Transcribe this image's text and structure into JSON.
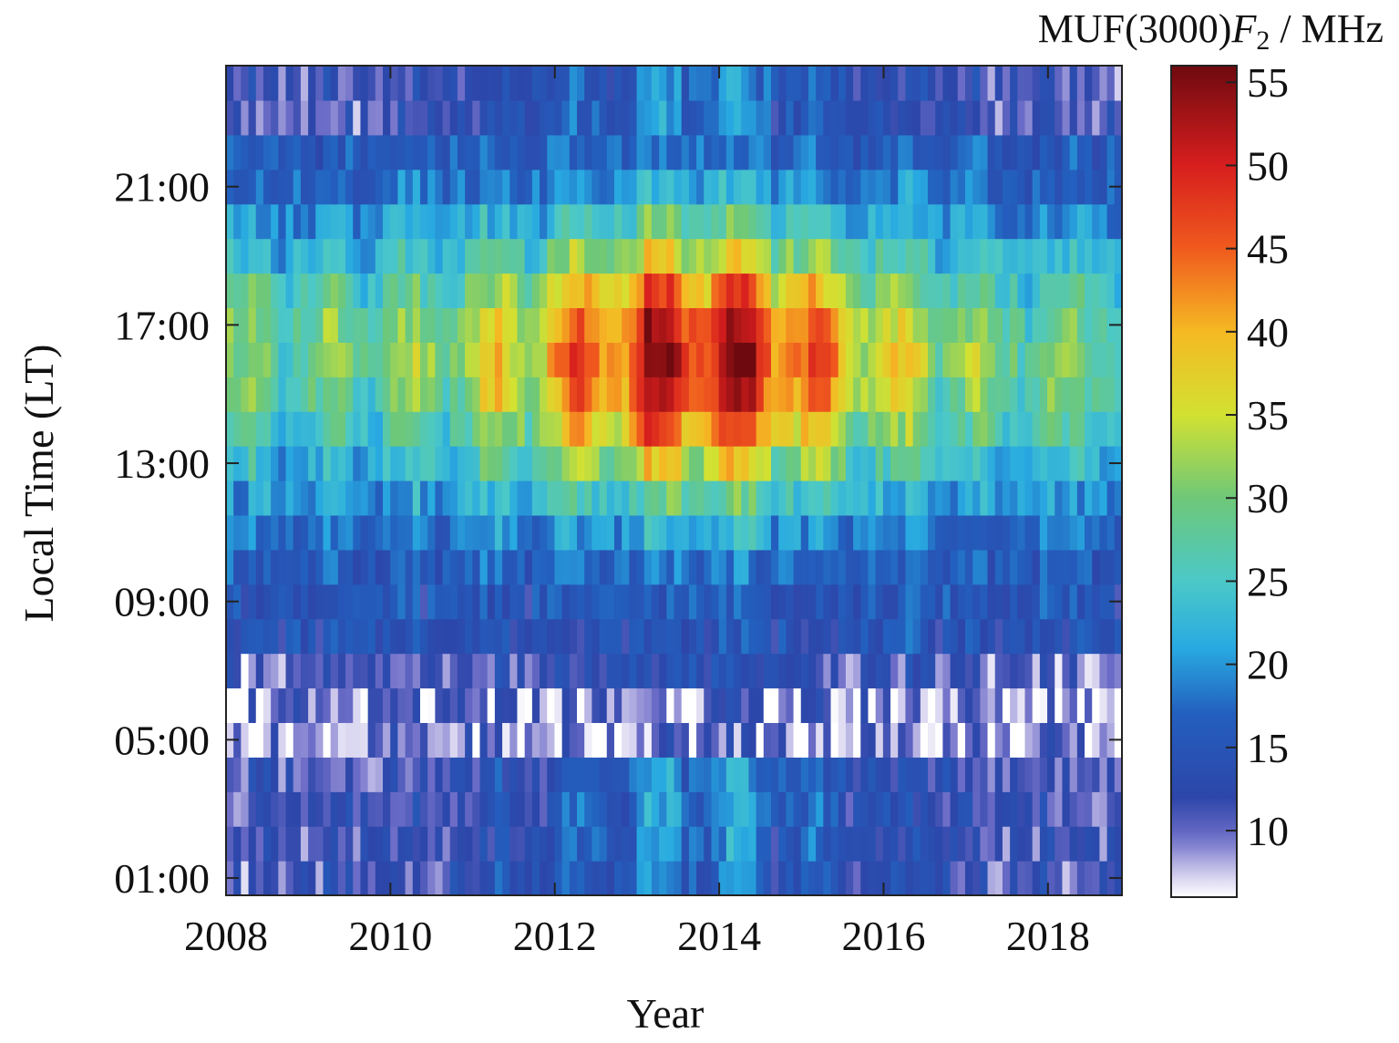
{
  "chart_data": {
    "type": "heatmap",
    "title": "",
    "xlabel": "Year",
    "ylabel": "Local Time (LT)",
    "xlim": [
      2008,
      2018.9
    ],
    "ylim": [
      0.5,
      24.5
    ],
    "x_ticks": [
      "2008",
      "2010",
      "2012",
      "2014",
      "2016",
      "2018"
    ],
    "y_ticks": [
      "01:00",
      "05:00",
      "09:00",
      "13:00",
      "17:00",
      "21:00"
    ],
    "x_tick_values": [
      2008,
      2010,
      2012,
      2014,
      2016,
      2018
    ],
    "y_tick_values": [
      1,
      5,
      9,
      13,
      17,
      21
    ],
    "colorbar": {
      "label_main": "MUF(3000)",
      "label_var": "F",
      "label_sub": "2",
      "label_unit": " / MHz",
      "range": [
        6,
        56
      ],
      "ticks": [
        "10",
        "15",
        "20",
        "25",
        "30",
        "35",
        "40",
        "45",
        "50",
        "55"
      ],
      "tick_values": [
        10,
        15,
        20,
        25,
        30,
        35,
        40,
        45,
        50,
        55
      ],
      "colormap": "jet (light lavender to white below ~9 MHz)"
    },
    "value_model": {
      "description": "MUF(3000)F2 in MHz as a function of year and local time; daytime peak near 15-17 LT, strongest near solar maximum (2012-2015), seasonal variation each year",
      "night_level_mhz": [
        9,
        22
      ],
      "dawn_minimum_hour": 5.5,
      "dawn_minimum_mhz": [
        7,
        11
      ],
      "daytime_peak_mhz": [
        30,
        55
      ],
      "peak_hour": 16
    },
    "data_columns": 120,
    "data_rows": 24
  },
  "colors": {
    "axis": "#222222",
    "background": "#ffffff"
  }
}
